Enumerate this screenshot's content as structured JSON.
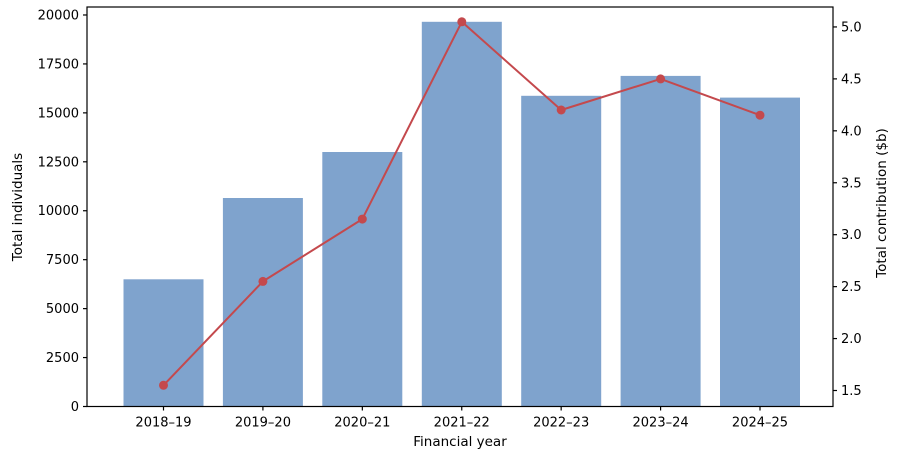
{
  "chart_data": {
    "type": "bar",
    "subtype": "bar-line-combo-dual-axis",
    "title": "",
    "xlabel": "Financial year",
    "ylabel_left": "Total individuals",
    "ylabel_right": "Total contribution ($b)",
    "categories": [
      "2018–19",
      "2019–20",
      "2020–21",
      "2021–22",
      "2022–23",
      "2023–24",
      "2024–25"
    ],
    "series": [
      {
        "name": "Total individuals",
        "type": "bar",
        "axis": "left",
        "color": "#7fa3cd",
        "values": [
          6500,
          10650,
          13000,
          19650,
          15870,
          16890,
          15780
        ]
      },
      {
        "name": "Total contribution ($b)",
        "type": "line",
        "axis": "right",
        "color": "#c4494d",
        "marker": "circle",
        "values": [
          1.55,
          2.55,
          3.15,
          5.05,
          4.2,
          4.5,
          4.15
        ]
      }
    ],
    "yticks_left": [
      0,
      2500,
      5000,
      7500,
      10000,
      12500,
      15000,
      17500,
      20000
    ],
    "yticks_right": [
      1.5,
      2.0,
      2.5,
      3.0,
      3.5,
      4.0,
      4.5,
      5.0
    ],
    "ylim_left": [
      0,
      20408
    ],
    "ylim_right": [
      1.346,
      5.192
    ],
    "grid": false,
    "legend_position": "none",
    "spine_color": "#000000"
  }
}
